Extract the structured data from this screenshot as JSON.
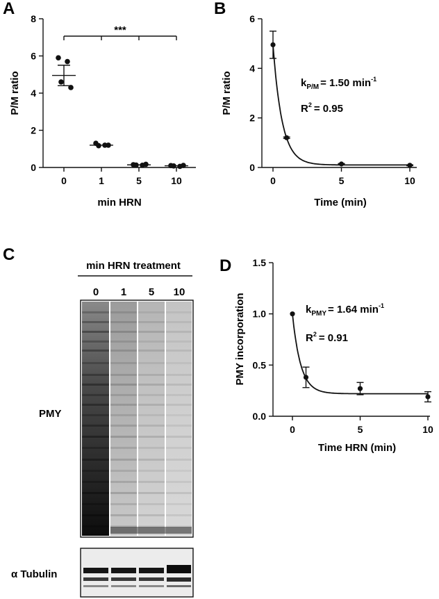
{
  "panels": {
    "a": "A",
    "b": "B",
    "c": "C",
    "d": "D"
  },
  "chart_data": [
    {
      "panel": "A",
      "type": "scatter",
      "xlabel": "min HRN",
      "ylabel": "P/M ratio",
      "categories": [
        "0",
        "1",
        "5",
        "10"
      ],
      "ylim": [
        0,
        8
      ],
      "yticks": [
        0,
        2,
        4,
        6,
        8
      ],
      "series": [
        {
          "values": [
            [
              5.9,
              5.7,
              4.6,
              4.3
            ],
            [
              1.3,
              1.2,
              1.17,
              1.2
            ],
            [
              0.15,
              0.12,
              0.13,
              0.17
            ],
            [
              0.1,
              0.06,
              0.08,
              0.11
            ]
          ]
        }
      ],
      "mean": [
        4.95,
        1.2,
        0.14,
        0.09
      ],
      "sem": [
        0.55,
        0.03,
        0.02,
        0.02
      ],
      "significance": "***",
      "grid": false
    },
    {
      "panel": "B",
      "type": "line",
      "xlabel": "Time (min)",
      "ylabel": "P/M ratio",
      "xticks": [
        0,
        5,
        10
      ],
      "ylim": [
        0,
        6
      ],
      "yticks": [
        0,
        2,
        4,
        6
      ],
      "x": [
        0,
        1,
        5,
        10
      ],
      "y": [
        4.95,
        1.2,
        0.14,
        0.09
      ],
      "error": [
        0.55,
        0.03,
        0.02,
        0.02
      ],
      "fit": {
        "k": 1.5,
        "plateau": 0.1
      },
      "annotation_k": {
        "k": "k",
        "sub": "P/M",
        "eq": "= 1.50 min",
        "sup": "-1"
      },
      "annotation_r2": {
        "r": "R",
        "sup": "2",
        "eq": "= 0.95"
      },
      "grid": false
    },
    {
      "panel": "D",
      "type": "line",
      "xlabel": "Time HRN (min)",
      "ylabel": "PMY incorporation",
      "xticks": [
        0,
        5,
        10
      ],
      "ylim": [
        0,
        1.5
      ],
      "yticks": [
        "0.0",
        "0.5",
        "1.0",
        "1.5"
      ],
      "x": [
        0,
        1,
        5,
        10
      ],
      "y": [
        1.0,
        0.38,
        0.27,
        0.19
      ],
      "error": [
        0.0,
        0.1,
        0.06,
        0.05
      ],
      "fit": {
        "k": 1.64,
        "plateau": 0.22
      },
      "annotation_k": {
        "k": "k",
        "sub": "PMY",
        "eq": "= 1.64 min",
        "sup": "-1"
      },
      "annotation_r2": {
        "r": "R",
        "sup": "2",
        "eq": "= 0.91"
      },
      "grid": false
    }
  ],
  "blot": {
    "header": "min HRN treatment",
    "lanes": [
      "0",
      "1",
      "5",
      "10"
    ],
    "main_label": "PMY",
    "loading_label": "α Tubulin"
  }
}
